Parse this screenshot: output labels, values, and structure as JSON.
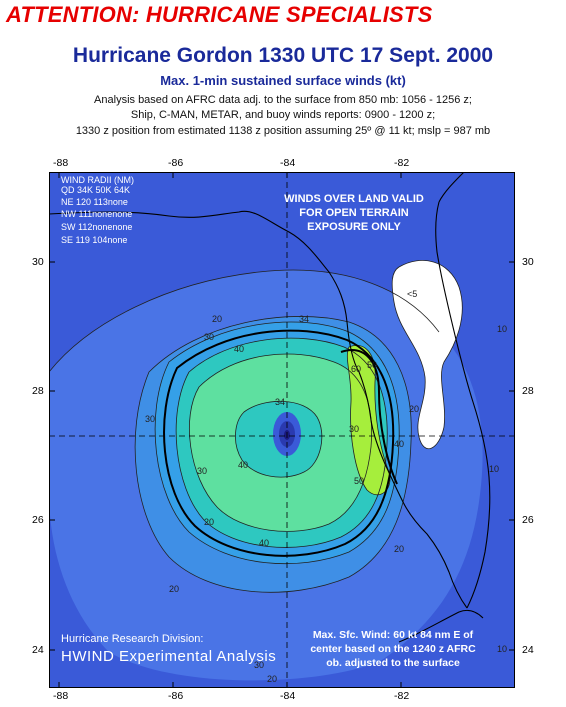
{
  "header": {
    "attention": "ATTENTION: HURRICANE SPECIALISTS",
    "title": "Hurricane Gordon 1330 UTC 17 Sept. 2000",
    "subtitle": "Max. 1-min sustained surface winds (kt)",
    "line1": "Analysis based on AFRC data adj. to the surface from 850 mb:  1056 - 1256 z;",
    "line2": "Ship, C-MAN, METAR, and buoy winds reports: 0900 - 1200 z;",
    "line3": "1330 z position from estimated 1138 z position assuming 25º @ 11 kt; mslp = 987 mb"
  },
  "axes": {
    "top_lon": [
      "-88",
      "-86",
      "-84",
      "-82"
    ],
    "bottom_lon": [
      "-88",
      "-86",
      "-84",
      "-82"
    ],
    "left_lat": [
      "30",
      "28",
      "26",
      "24"
    ],
    "right_lat": [
      "30",
      "28",
      "26",
      "24"
    ]
  },
  "wind_radii": {
    "title": "WIND RADII (NM)",
    "header_row": "QD 34K 50K 64K",
    "rows": [
      "NE 120 113none",
      "NW 111nonenone",
      "SW 112nonenone",
      "SE 119 104none"
    ]
  },
  "notice": [
    "WINDS OVER LAND VALID",
    "FOR OPEN TERRAIN",
    "EXPOSURE ONLY"
  ],
  "max_wind": [
    "Max. Sfc. Wind: 60 kt 84 nm E of",
    "center based on the 1240 z AFRC",
    "ob. adjusted to the surface"
  ],
  "credit": {
    "division": "Hurricane Research Division:",
    "product": "HWIND Experimental Analysis"
  },
  "contour_labels": [
    "<5",
    "10",
    "20",
    "30",
    "34",
    "40",
    "50",
    "60",
    "40",
    "34",
    "30",
    "20",
    "40",
    "50",
    "40",
    "30",
    "20",
    "10",
    "20",
    "30",
    "20",
    "10",
    "30",
    "20"
  ],
  "colors": {
    "background": "#3a5ad8",
    "ocean_light": "#4a74e6",
    "band_30": "#35a0e8",
    "band_40": "#2ec8c0",
    "band_50": "#5ee0a0",
    "band_60": "#a6ee3c",
    "calm": "#ffffff",
    "attention_text": "#e60000",
    "title_text": "#1a2a9a"
  }
}
